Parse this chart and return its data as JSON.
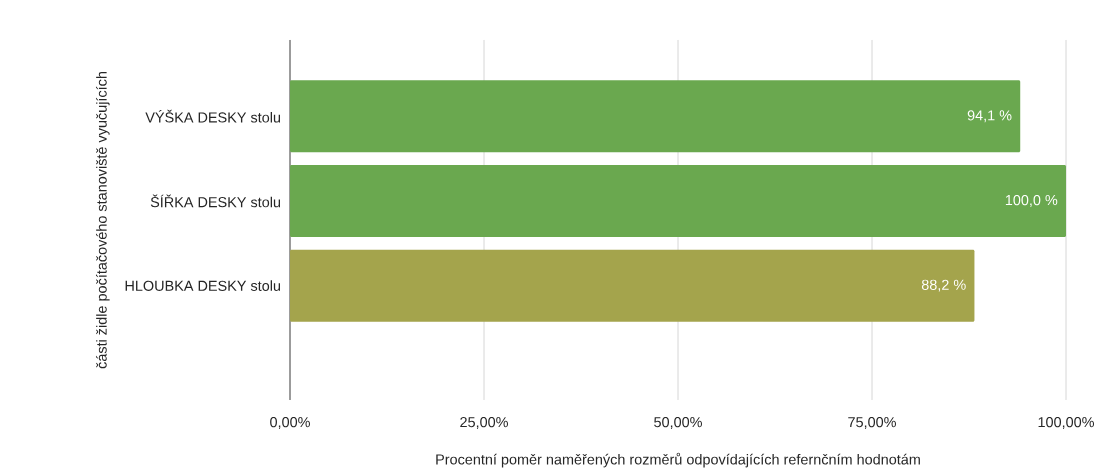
{
  "chart_data": {
    "type": "bar",
    "orientation": "horizontal",
    "categories": [
      "VÝŠKA DESKY stolu",
      "ŠÍŘKA DESKY stolu",
      "HLOUBKA DESKY stolu"
    ],
    "values": [
      94.1,
      100.0,
      88.2
    ],
    "value_labels": [
      "94,1 %",
      "100,0 %",
      "88,2 %"
    ],
    "colors": [
      "#6aa84f",
      "#6aa84f",
      "#a4a44c"
    ],
    "xlabel": "Procentní poměr naměřených rozměrů odpovídajících refernčním hodnotám",
    "ylabel": "části židle počítačového stanoviště vyučujících",
    "xlim": [
      0,
      100
    ],
    "xticks": [
      {
        "value": 0,
        "label": "0,00%"
      },
      {
        "value": 25,
        "label": "25,00%"
      },
      {
        "value": 50,
        "label": "50,00%"
      },
      {
        "value": 75,
        "label": "75,00%"
      },
      {
        "value": 100,
        "label": "100,00%"
      }
    ],
    "grid": "x"
  }
}
